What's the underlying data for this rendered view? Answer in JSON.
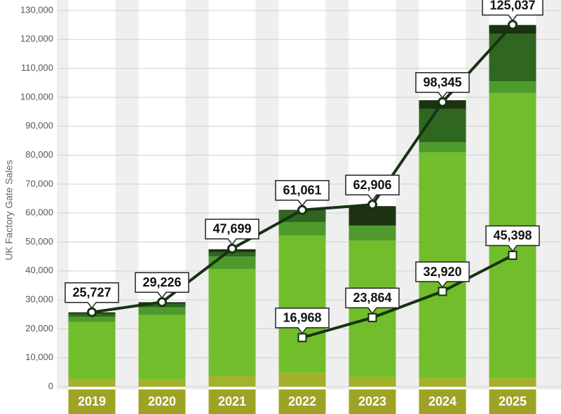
{
  "chart_data": {
    "type": "bar",
    "stacked": true,
    "y_label": "UK Factory Gate Sales",
    "categories": [
      "2019",
      "2020",
      "2021",
      "2022",
      "2023",
      "2024",
      "2025"
    ],
    "series": [
      {
        "color": "#a4b12a",
        "values": [
          2700,
          2500,
          3600,
          4800,
          3400,
          3000,
          3000
        ]
      },
      {
        "color": "#72bd2b",
        "values": [
          19700,
          22300,
          37000,
          47400,
          47100,
          78000,
          98500
        ]
      },
      {
        "color": "#4e9a2c",
        "values": [
          1800,
          2600,
          4400,
          4700,
          5200,
          3500,
          4000
        ]
      },
      {
        "color": "#2f6620",
        "values": [
          1000,
          1300,
          1500,
          3900,
          0,
          11500,
          16500
        ]
      },
      {
        "color": "#1c3210",
        "values": [
          500,
          500,
          1000,
          300,
          6700,
          3000,
          3000
        ]
      }
    ],
    "lines": [
      {
        "color": "#173311",
        "marker": "circle",
        "values": [
          25727,
          29226,
          47699,
          61061,
          62906,
          98345,
          125037
        ],
        "value_labels": [
          "25,727",
          "29,226",
          "47,699",
          "61,061",
          "62,906",
          "98,345",
          "125,037"
        ]
      },
      {
        "color": "#173311",
        "marker": "square",
        "values": [
          null,
          null,
          null,
          16968,
          23864,
          32920,
          45398
        ],
        "value_labels": [
          null,
          null,
          null,
          "16,968",
          "23,864",
          "32,920",
          "45,398"
        ]
      }
    ],
    "ylim": [
      0,
      130000
    ],
    "yticks": [
      0,
      {
        "value": 10000,
        "label": "10,000"
      },
      {
        "value": 20000,
        "label": "20,000"
      },
      {
        "value": 30000,
        "label": "30,000"
      },
      {
        "value": 40000,
        "label": "40,000"
      },
      {
        "value": 50000,
        "label": "50,000"
      },
      {
        "value": 60000,
        "label": "60,000"
      },
      {
        "value": 70000,
        "label": "70,000"
      },
      {
        "value": 80000,
        "label": "80,000"
      },
      {
        "value": 90000,
        "label": "90,000"
      },
      {
        "value": 100000,
        "label": "100,000"
      },
      {
        "value": 110000,
        "label": "110,000"
      },
      {
        "value": 120000,
        "label": "120,000"
      },
      {
        "value": 130000,
        "label": "130,000"
      }
    ],
    "grid": true,
    "category_box_color": "#9ea325"
  }
}
